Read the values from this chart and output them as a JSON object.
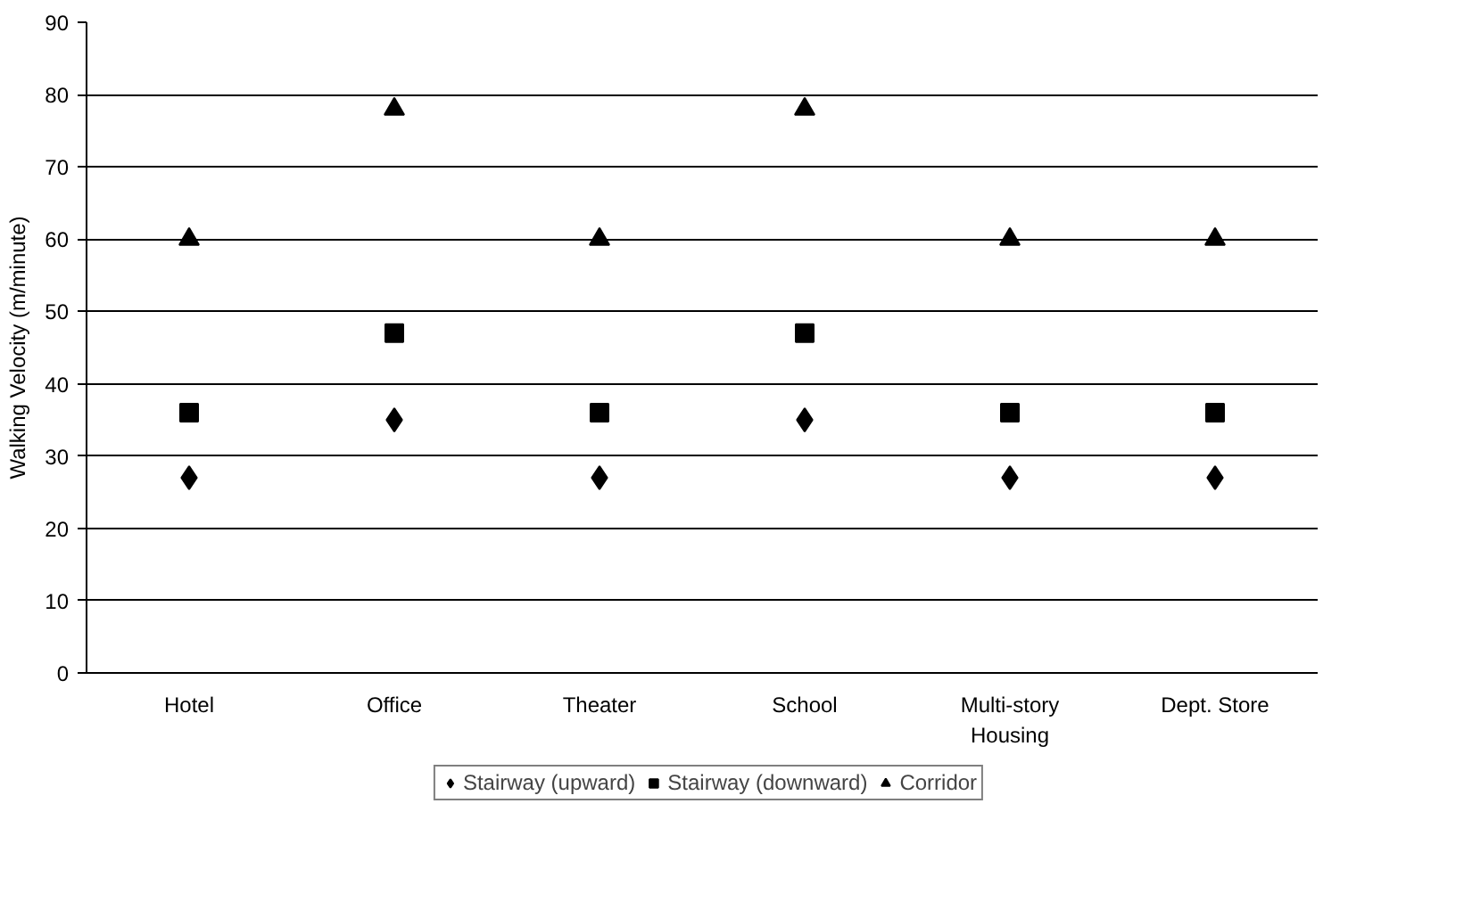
{
  "chart_data": {
    "type": "scatter",
    "ylabel": "Walking Velocity (m/minute)",
    "categories": [
      "Hotel",
      "Office",
      "Theater",
      "School",
      "Multi-story Housing",
      "Dept. Store"
    ],
    "series": [
      {
        "name": "Stairway (upward)",
        "color": "#000000",
        "marker": "diamond",
        "values": [
          27,
          35,
          27,
          35,
          27,
          27
        ]
      },
      {
        "name": "Stairway (downward)",
        "color": "#000000",
        "marker": "square",
        "values": [
          36,
          47,
          36,
          47,
          36,
          36
        ]
      },
      {
        "name": "Corridor",
        "color": "#000000",
        "marker": "triangle",
        "values": [
          60,
          78,
          60,
          78,
          60,
          60
        ]
      }
    ],
    "ylim": [
      0,
      90
    ],
    "yticks": [
      0,
      10,
      20,
      30,
      40,
      50,
      60,
      70,
      80,
      90
    ],
    "grid": "y",
    "legend": "bottom"
  }
}
